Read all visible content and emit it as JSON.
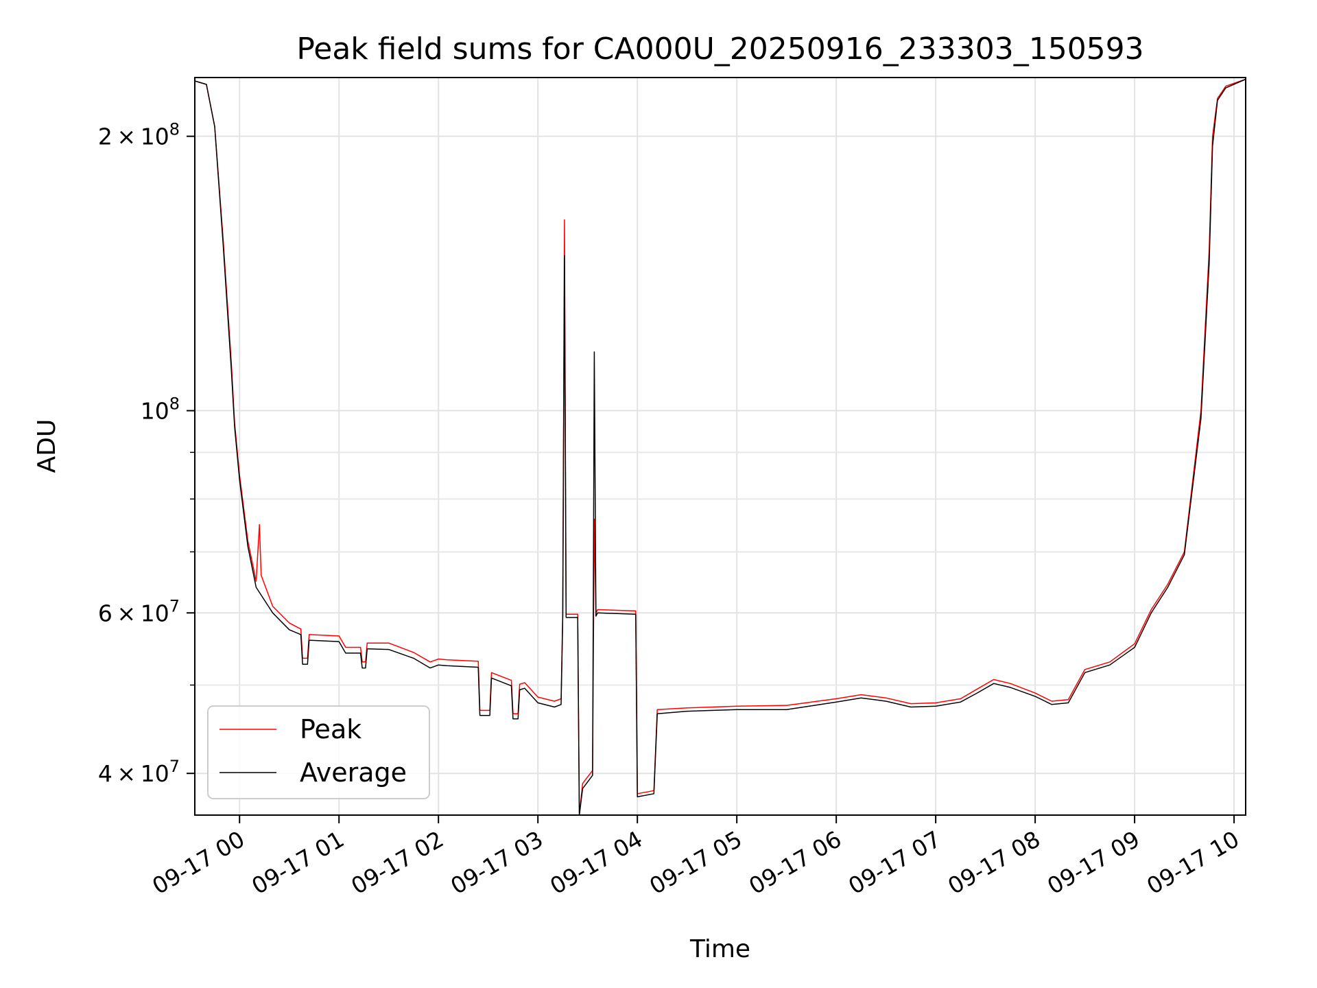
{
  "chart_data": {
    "type": "line",
    "title": "Peak field sums for CA000U_20250916_233303_150593",
    "xlabel": "Time",
    "ylabel": "ADU",
    "yscale": "log",
    "ylim": [
      36000000,
      232000000
    ],
    "xlim": [
      "2025-09-16T23:33",
      "2025-09-17T10:07"
    ],
    "grid": true,
    "legend_position": "lower-left",
    "x_ticks": [
      {
        "t": "2025-09-17T00:00",
        "label": "09-17 00"
      },
      {
        "t": "2025-09-17T01:00",
        "label": "09-17 01"
      },
      {
        "t": "2025-09-17T02:00",
        "label": "09-17 02"
      },
      {
        "t": "2025-09-17T03:00",
        "label": "09-17 03"
      },
      {
        "t": "2025-09-17T04:00",
        "label": "09-17 04"
      },
      {
        "t": "2025-09-17T05:00",
        "label": "09-17 05"
      },
      {
        "t": "2025-09-17T06:00",
        "label": "09-17 06"
      },
      {
        "t": "2025-09-17T07:00",
        "label": "09-17 07"
      },
      {
        "t": "2025-09-17T08:00",
        "label": "09-17 08"
      },
      {
        "t": "2025-09-17T09:00",
        "label": "09-17 09"
      },
      {
        "t": "2025-09-17T10:00",
        "label": "09-17 10"
      }
    ],
    "y_major_ticks": [
      {
        "v": 40000000,
        "mant": "4",
        "exp": "7"
      },
      {
        "v": 60000000,
        "mant": "6",
        "exp": "7"
      },
      {
        "v": 100000000,
        "mant": "",
        "exp": "8"
      },
      {
        "v": 200000000,
        "mant": "2",
        "exp": "8"
      }
    ],
    "y_minor_ticks": [
      50000000,
      70000000,
      80000000,
      90000000
    ],
    "series": [
      {
        "name": "Peak",
        "color": "#ff0000",
        "points": [
          [
            "2025-09-16T23:33",
            230000000
          ],
          [
            "2025-09-16T23:40",
            228000000
          ],
          [
            "2025-09-16T23:45",
            205000000
          ],
          [
            "2025-09-16T23:50",
            155000000
          ],
          [
            "2025-09-16T23:55",
            113000000
          ],
          [
            "2025-09-16T23:57",
            97000000
          ],
          [
            "2025-09-17T00:00",
            85000000
          ],
          [
            "2025-09-17T00:05",
            72000000
          ],
          [
            "2025-09-17T00:10",
            65000000
          ],
          [
            "2025-09-17T00:12",
            75000000
          ],
          [
            "2025-09-17T00:13",
            66000000
          ],
          [
            "2025-09-17T00:20",
            61000000
          ],
          [
            "2025-09-17T00:30",
            58500000
          ],
          [
            "2025-09-17T00:37",
            57600000
          ],
          [
            "2025-09-17T00:38",
            53500000
          ],
          [
            "2025-09-17T00:41",
            53500000
          ],
          [
            "2025-09-17T00:42",
            56800000
          ],
          [
            "2025-09-17T01:00",
            56600000
          ],
          [
            "2025-09-17T01:04",
            55000000
          ],
          [
            "2025-09-17T01:13",
            55000000
          ],
          [
            "2025-09-17T01:14",
            53000000
          ],
          [
            "2025-09-17T01:16",
            53000000
          ],
          [
            "2025-09-17T01:17",
            55600000
          ],
          [
            "2025-09-17T01:30",
            55600000
          ],
          [
            "2025-09-17T01:45",
            54300000
          ],
          [
            "2025-09-17T01:55",
            53000000
          ],
          [
            "2025-09-17T02:00",
            53400000
          ],
          [
            "2025-09-17T02:05",
            53300000
          ],
          [
            "2025-09-17T02:24",
            53100000
          ],
          [
            "2025-09-17T02:25",
            46900000
          ],
          [
            "2025-09-17T02:31",
            46900000
          ],
          [
            "2025-09-17T02:32",
            51600000
          ],
          [
            "2025-09-17T02:44",
            50600000
          ],
          [
            "2025-09-17T02:45",
            46500000
          ],
          [
            "2025-09-17T02:48",
            46500000
          ],
          [
            "2025-09-17T02:49",
            50100000
          ],
          [
            "2025-09-17T02:52",
            50300000
          ],
          [
            "2025-09-17T03:00",
            48500000
          ],
          [
            "2025-09-17T03:10",
            48000000
          ],
          [
            "2025-09-17T03:14",
            48300000
          ],
          [
            "2025-09-17T03:15",
            59800000
          ],
          [
            "2025-09-17T03:16",
            162000000
          ],
          [
            "2025-09-17T03:17",
            59800000
          ],
          [
            "2025-09-17T03:24",
            59800000
          ],
          [
            "2025-09-17T03:25",
            36000000
          ],
          [
            "2025-09-17T03:27",
            39000000
          ],
          [
            "2025-09-17T03:33",
            40300000
          ],
          [
            "2025-09-17T03:34",
            76000000
          ],
          [
            "2025-09-17T03:35",
            60000000
          ],
          [
            "2025-09-17T03:36",
            60500000
          ],
          [
            "2025-09-17T03:59",
            60300000
          ],
          [
            "2025-09-17T04:00",
            38000000
          ],
          [
            "2025-09-17T04:10",
            38300000
          ],
          [
            "2025-09-17T04:12",
            47000000
          ],
          [
            "2025-09-17T04:30",
            47200000
          ],
          [
            "2025-09-17T05:00",
            47400000
          ],
          [
            "2025-09-17T05:30",
            47500000
          ],
          [
            "2025-09-17T06:00",
            48300000
          ],
          [
            "2025-09-17T06:15",
            48800000
          ],
          [
            "2025-09-17T06:30",
            48400000
          ],
          [
            "2025-09-17T06:45",
            47700000
          ],
          [
            "2025-09-17T07:00",
            47800000
          ],
          [
            "2025-09-17T07:15",
            48300000
          ],
          [
            "2025-09-17T07:25",
            49500000
          ],
          [
            "2025-09-17T07:35",
            50700000
          ],
          [
            "2025-09-17T07:45",
            50200000
          ],
          [
            "2025-09-17T08:00",
            49000000
          ],
          [
            "2025-09-17T08:10",
            48000000
          ],
          [
            "2025-09-17T08:20",
            48200000
          ],
          [
            "2025-09-17T08:30",
            52000000
          ],
          [
            "2025-09-17T08:45",
            53000000
          ],
          [
            "2025-09-17T09:00",
            55500000
          ],
          [
            "2025-09-17T09:10",
            60500000
          ],
          [
            "2025-09-17T09:20",
            64500000
          ],
          [
            "2025-09-17T09:30",
            70000000
          ],
          [
            "2025-09-17T09:40",
            100000000
          ],
          [
            "2025-09-17T09:45",
            150000000
          ],
          [
            "2025-09-17T09:47",
            200000000
          ],
          [
            "2025-09-17T09:50",
            220000000
          ],
          [
            "2025-09-17T09:55",
            227000000
          ],
          [
            "2025-09-17T10:07",
            231000000
          ]
        ]
      },
      {
        "name": "Average",
        "color": "#000000",
        "points": [
          [
            "2025-09-16T23:33",
            230000000
          ],
          [
            "2025-09-16T23:40",
            228000000
          ],
          [
            "2025-09-16T23:45",
            205000000
          ],
          [
            "2025-09-16T23:50",
            153000000
          ],
          [
            "2025-09-16T23:55",
            111000000
          ],
          [
            "2025-09-16T23:57",
            96000000
          ],
          [
            "2025-09-17T00:00",
            84000000
          ],
          [
            "2025-09-17T00:05",
            71000000
          ],
          [
            "2025-09-17T00:10",
            64000000
          ],
          [
            "2025-09-17T00:20",
            60000000
          ],
          [
            "2025-09-17T00:30",
            57500000
          ],
          [
            "2025-09-17T00:37",
            56800000
          ],
          [
            "2025-09-17T00:38",
            52700000
          ],
          [
            "2025-09-17T00:41",
            52700000
          ],
          [
            "2025-09-17T00:42",
            56000000
          ],
          [
            "2025-09-17T01:00",
            55800000
          ],
          [
            "2025-09-17T01:04",
            54200000
          ],
          [
            "2025-09-17T01:13",
            54200000
          ],
          [
            "2025-09-17T01:14",
            52200000
          ],
          [
            "2025-09-17T01:16",
            52200000
          ],
          [
            "2025-09-17T01:17",
            54800000
          ],
          [
            "2025-09-17T01:30",
            54700000
          ],
          [
            "2025-09-17T01:45",
            53500000
          ],
          [
            "2025-09-17T01:55",
            52200000
          ],
          [
            "2025-09-17T02:00",
            52600000
          ],
          [
            "2025-09-17T02:05",
            52500000
          ],
          [
            "2025-09-17T02:24",
            52300000
          ],
          [
            "2025-09-17T02:25",
            46300000
          ],
          [
            "2025-09-17T02:31",
            46300000
          ],
          [
            "2025-09-17T02:32",
            50900000
          ],
          [
            "2025-09-17T02:44",
            49900000
          ],
          [
            "2025-09-17T02:45",
            45900000
          ],
          [
            "2025-09-17T02:48",
            45900000
          ],
          [
            "2025-09-17T02:49",
            49400000
          ],
          [
            "2025-09-17T02:52",
            49600000
          ],
          [
            "2025-09-17T03:00",
            47800000
          ],
          [
            "2025-09-17T03:10",
            47300000
          ],
          [
            "2025-09-17T03:14",
            47600000
          ],
          [
            "2025-09-17T03:15",
            59300000
          ],
          [
            "2025-09-17T03:16",
            148000000
          ],
          [
            "2025-09-17T03:17",
            59300000
          ],
          [
            "2025-09-17T03:24",
            59300000
          ],
          [
            "2025-09-17T03:25",
            36000000
          ],
          [
            "2025-09-17T03:27",
            38500000
          ],
          [
            "2025-09-17T03:33",
            39800000
          ],
          [
            "2025-09-17T03:34",
            116000000
          ],
          [
            "2025-09-17T03:35",
            59500000
          ],
          [
            "2025-09-17T03:36",
            60000000
          ],
          [
            "2025-09-17T03:59",
            59800000
          ],
          [
            "2025-09-17T04:00",
            37700000
          ],
          [
            "2025-09-17T04:10",
            38000000
          ],
          [
            "2025-09-17T04:12",
            46500000
          ],
          [
            "2025-09-17T04:30",
            46800000
          ],
          [
            "2025-09-17T05:00",
            47000000
          ],
          [
            "2025-09-17T05:30",
            47000000
          ],
          [
            "2025-09-17T06:00",
            47900000
          ],
          [
            "2025-09-17T06:15",
            48400000
          ],
          [
            "2025-09-17T06:30",
            48000000
          ],
          [
            "2025-09-17T06:45",
            47300000
          ],
          [
            "2025-09-17T07:00",
            47400000
          ],
          [
            "2025-09-17T07:15",
            47900000
          ],
          [
            "2025-09-17T07:25",
            49000000
          ],
          [
            "2025-09-17T07:35",
            50200000
          ],
          [
            "2025-09-17T07:45",
            49700000
          ],
          [
            "2025-09-17T08:00",
            48600000
          ],
          [
            "2025-09-17T08:10",
            47600000
          ],
          [
            "2025-09-17T08:20",
            47800000
          ],
          [
            "2025-09-17T08:30",
            51600000
          ],
          [
            "2025-09-17T08:45",
            52600000
          ],
          [
            "2025-09-17T09:00",
            55000000
          ],
          [
            "2025-09-17T09:10",
            60000000
          ],
          [
            "2025-09-17T09:20",
            64000000
          ],
          [
            "2025-09-17T09:30",
            69500000
          ],
          [
            "2025-09-17T09:40",
            98000000
          ],
          [
            "2025-09-17T09:45",
            145000000
          ],
          [
            "2025-09-17T09:47",
            195000000
          ],
          [
            "2025-09-17T09:50",
            219000000
          ],
          [
            "2025-09-17T09:55",
            226000000
          ],
          [
            "2025-09-17T10:07",
            231000000
          ]
        ]
      }
    ]
  }
}
